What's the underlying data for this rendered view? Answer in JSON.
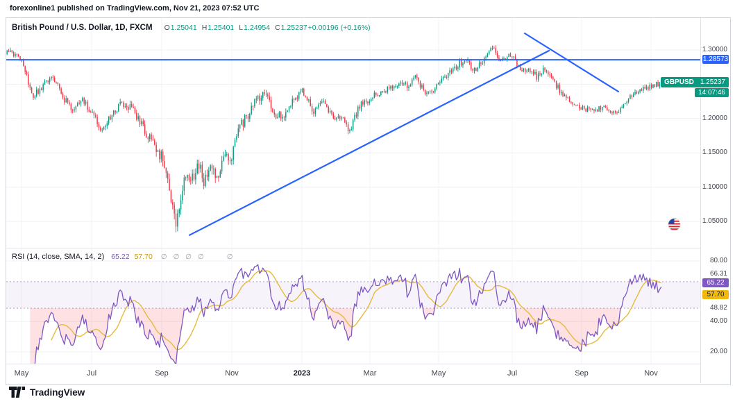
{
  "meta": {
    "publish_note": "forexonline1 published on TradingView.com, Nov 21, 2023 07:52 UTC"
  },
  "legend": {
    "title": "British Pound / U.S. Dollar, 1D, FXCM",
    "o_key": "O",
    "o": "1.25041",
    "h_key": "H",
    "h": "1.25401",
    "l_key": "L",
    "l": "1.24954",
    "c_key": "C",
    "c": "1.25237",
    "change": "+0.00196 (+0.16%)"
  },
  "price_axis": {
    "labels": [
      {
        "text": "1.30000",
        "p": 1.3
      },
      {
        "text": "1.20000",
        "p": 1.2
      },
      {
        "text": "1.15000",
        "p": 1.15
      },
      {
        "text": "1.10000",
        "p": 1.1
      },
      {
        "text": "1.05000",
        "p": 1.05
      }
    ],
    "hline_label": "1.28573",
    "symbol": "GBPUSD",
    "last_price": "1.25237",
    "countdown": "14:07:46"
  },
  "rsi": {
    "title": "RSI (14, close, SMA, 14, 2)",
    "value": "65.22",
    "ma": "57.70",
    "empty": [
      "∅",
      "∅",
      "∅",
      "∅",
      "∅"
    ],
    "axis": [
      {
        "text": "80.00",
        "v": 80.0
      },
      {
        "text": "66.31",
        "v": 66.31
      },
      {
        "text": "48.82",
        "v": 48.82
      },
      {
        "text": "40.00",
        "v": 40.0
      },
      {
        "text": "20.00",
        "v": 20.0
      }
    ]
  },
  "time_axis": [
    {
      "label": "May",
      "f": 0.022
    },
    {
      "label": "Jul",
      "f": 0.123
    },
    {
      "label": "Sep",
      "f": 0.224
    },
    {
      "label": "Nov",
      "f": 0.325
    },
    {
      "label": "2023",
      "f": 0.426,
      "major": true
    },
    {
      "label": "Mar",
      "f": 0.524
    },
    {
      "label": "May",
      "f": 0.623
    },
    {
      "label": "Jul",
      "f": 0.729
    },
    {
      "label": "Sep",
      "f": 0.829
    },
    {
      "label": "Nov",
      "f": 0.929
    }
  ],
  "footer": {
    "brand": "TradingView"
  },
  "colors": {
    "up": "#089981",
    "down": "#F23645",
    "blue": "#2962FF",
    "purple": "#7E57C2",
    "yellow": "#E8B93B",
    "badge_yellow": "#F0B90B",
    "grid": "#EEF0F5",
    "band_fill": "rgba(126,87,194,0.07)",
    "oversold_fill": "rgba(242,54,69,0.15)"
  },
  "chart_data": {
    "type": "candlestick",
    "symbol": "GBPUSD",
    "title": "British Pound / U.S. Dollar",
    "interval": "1D",
    "exchange": "FXCM",
    "last": {
      "o": 1.25041,
      "h": 1.25401,
      "l": 1.24954,
      "c": 1.25237,
      "change": 0.00196,
      "change_pct": 0.16
    },
    "x_range": [
      "2022-04",
      "2023-11"
    ],
    "price_range_visible": [
      1.0116,
      1.3466
    ],
    "rsi_range_visible": [
      12.2,
      88.24
    ],
    "grid_prices": [
      1.3,
      1.25,
      1.2,
      1.15,
      1.1,
      1.05
    ],
    "hline_price": 1.28573,
    "trendlines": [
      {
        "name": "ascending-support",
        "x1": 0.264,
        "p1": 1.03,
        "x2": 0.782,
        "p2": 1.299
      },
      {
        "name": "descending-resistance",
        "x1": 0.747,
        "p1": 1.3243,
        "x2": 0.882,
        "p2": 1.2393
      }
    ],
    "rsi": {
      "period": 14,
      "source": "close",
      "ma_type": "SMA",
      "ma_length": 14,
      "last": 65.22,
      "ma_last": 57.7,
      "band_upper": 66.31,
      "band_lower": 48.82,
      "grid": [
        80,
        40,
        20
      ]
    },
    "n_candles": 400,
    "seed": 20231121,
    "right_margin": 0.055,
    "last_close": 1.25237,
    "price_path": [
      [
        0.0,
        1.302
      ],
      [
        0.008,
        1.297
      ],
      [
        0.022,
        1.284
      ],
      [
        0.04,
        1.233
      ],
      [
        0.055,
        1.248
      ],
      [
        0.07,
        1.26
      ],
      [
        0.085,
        1.232
      ],
      [
        0.1,
        1.212
      ],
      [
        0.115,
        1.227
      ],
      [
        0.128,
        1.208
      ],
      [
        0.143,
        1.187
      ],
      [
        0.158,
        1.202
      ],
      [
        0.175,
        1.223
      ],
      [
        0.193,
        1.213
      ],
      [
        0.21,
        1.183
      ],
      [
        0.224,
        1.165
      ],
      [
        0.238,
        1.14
      ],
      [
        0.25,
        1.087
      ],
      [
        0.258,
        1.038
      ],
      [
        0.263,
        1.07
      ],
      [
        0.272,
        1.122
      ],
      [
        0.282,
        1.108
      ],
      [
        0.292,
        1.133
      ],
      [
        0.302,
        1.108
      ],
      [
        0.312,
        1.134
      ],
      [
        0.322,
        1.115
      ],
      [
        0.332,
        1.15
      ],
      [
        0.34,
        1.135
      ],
      [
        0.355,
        1.187
      ],
      [
        0.368,
        1.205
      ],
      [
        0.382,
        1.229
      ],
      [
        0.395,
        1.236
      ],
      [
        0.41,
        1.203
      ],
      [
        0.425,
        1.206
      ],
      [
        0.44,
        1.229
      ],
      [
        0.453,
        1.24
      ],
      [
        0.468,
        1.208
      ],
      [
        0.48,
        1.23
      ],
      [
        0.495,
        1.204
      ],
      [
        0.51,
        1.202
      ],
      [
        0.524,
        1.182
      ],
      [
        0.538,
        1.218
      ],
      [
        0.552,
        1.227
      ],
      [
        0.568,
        1.238
      ],
      [
        0.583,
        1.244
      ],
      [
        0.6,
        1.253
      ],
      [
        0.614,
        1.246
      ],
      [
        0.625,
        1.263
      ],
      [
        0.64,
        1.233
      ],
      [
        0.655,
        1.244
      ],
      [
        0.67,
        1.261
      ],
      [
        0.685,
        1.275
      ],
      [
        0.7,
        1.287
      ],
      [
        0.714,
        1.272
      ],
      [
        0.728,
        1.284
      ],
      [
        0.74,
        1.308
      ],
      [
        0.75,
        1.29
      ],
      [
        0.76,
        1.283
      ],
      [
        0.77,
        1.295
      ],
      [
        0.78,
        1.279
      ],
      [
        0.79,
        1.27
      ],
      [
        0.8,
        1.272
      ],
      [
        0.81,
        1.26
      ],
      [
        0.82,
        1.272
      ],
      [
        0.83,
        1.26
      ],
      [
        0.841,
        1.246
      ],
      [
        0.855,
        1.228
      ],
      [
        0.87,
        1.22
      ],
      [
        0.884,
        1.214
      ],
      [
        0.898,
        1.208
      ],
      [
        0.912,
        1.22
      ],
      [
        0.924,
        1.21
      ],
      [
        0.936,
        1.212
      ],
      [
        0.95,
        1.228
      ],
      [
        0.965,
        1.242
      ],
      [
        0.982,
        1.246
      ],
      [
        1.0,
        1.2524
      ]
    ],
    "volatility_path": [
      [
        0.0,
        0.0045
      ],
      [
        0.2,
        0.006
      ],
      [
        0.24,
        0.0095
      ],
      [
        0.3,
        0.0095
      ],
      [
        0.36,
        0.007
      ],
      [
        0.45,
        0.0055
      ],
      [
        0.6,
        0.0045
      ],
      [
        0.72,
        0.005
      ],
      [
        0.8,
        0.0045
      ],
      [
        1.0,
        0.004
      ]
    ]
  }
}
